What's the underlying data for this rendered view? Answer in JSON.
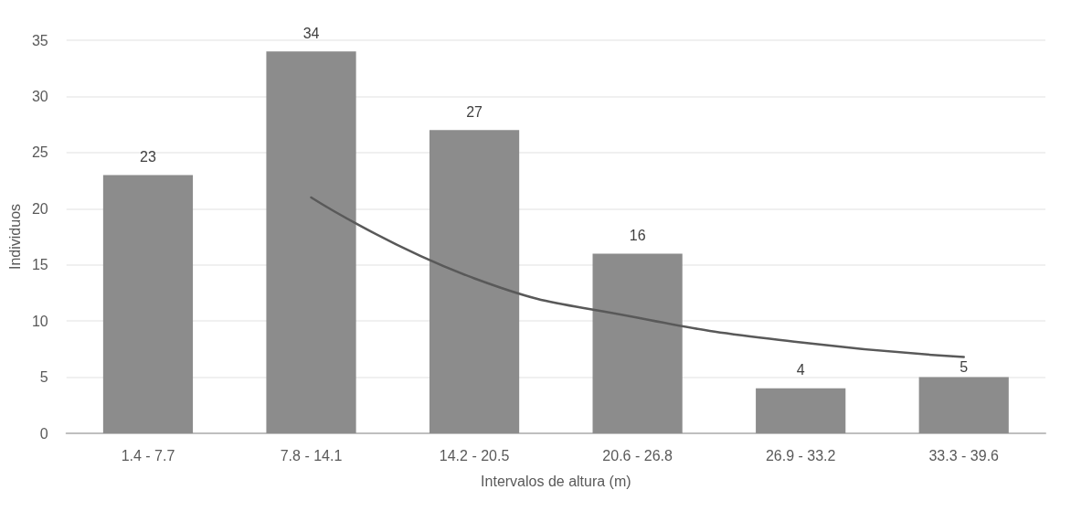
{
  "chart_data": {
    "type": "bar",
    "xlabel": "Intervalos de altura (m)",
    "ylabel": "Individuos",
    "categories": [
      "1.4 - 7.7",
      "7.8 - 14.1",
      "14.2 - 20.5",
      "20.6 - 26.8",
      "26.9 - 33.2",
      "33.3 - 39.6"
    ],
    "series": [
      {
        "color": "#8c8c8c",
        "values": [
          23,
          34,
          27,
          16,
          4,
          5
        ],
        "value_labels": [
          "23",
          "34",
          "27",
          "16",
          "4",
          "5"
        ]
      },
      {
        "type": "line",
        "color": "#595959",
        "marker": "none",
        "values": [
          null,
          21,
          13.8,
          10.3,
          8.1,
          6.8
        ]
      }
    ],
    "ylim": [
      0,
      35
    ],
    "yticks": [
      0,
      5,
      10,
      15,
      20,
      25,
      30,
      35
    ],
    "grid": "y"
  }
}
